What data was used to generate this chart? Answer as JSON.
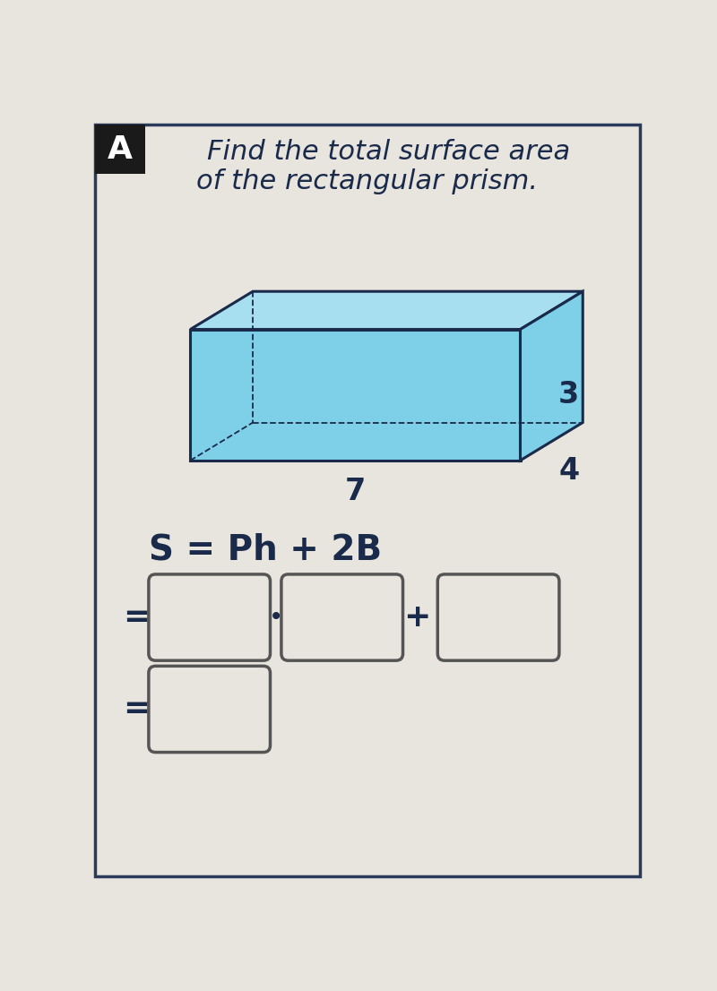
{
  "title_letter": "A",
  "title_text_line1": "Find the total surface area",
  "title_text_line2": "of the rectangular prism.",
  "dim_length": "7",
  "dim_width": "4",
  "dim_height": "3",
  "formula_text": "S = Ph + 2B",
  "bg_color": "#e8e4de",
  "prism_face_color": "#7ecfe8",
  "prism_top_color": "#a8dff0",
  "prism_right_color": "#7ecfe8",
  "prism_edge_color": "#1a2a4a",
  "title_bg": "#1a1a1a",
  "title_letter_color": "#ffffff",
  "label_color": "#1a2a4a",
  "formula_color": "#1a2a4a",
  "box_border_color": "#555555",
  "outer_border_color": "#2a3a5a"
}
